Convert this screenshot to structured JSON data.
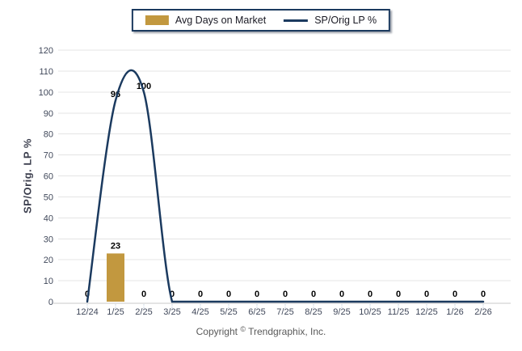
{
  "legend": {
    "items": [
      {
        "label": "Avg Days on Market",
        "swatch": "bar",
        "color": "#C2983F"
      },
      {
        "label": "SP/Orig LP %",
        "swatch": "line",
        "color": "#1B3A5F"
      }
    ]
  },
  "footer": {
    "prefix": "Copyright",
    "symbol": "©",
    "company": "Trendgraphix, Inc."
  },
  "chart_data": {
    "type": "combo",
    "categories": [
      "12/24",
      "1/25",
      "2/25",
      "3/25",
      "4/25",
      "5/25",
      "6/25",
      "7/25",
      "8/25",
      "9/25",
      "10/25",
      "11/25",
      "12/25",
      "1/26",
      "2/26"
    ],
    "series": [
      {
        "name": "Avg Days on Market",
        "type": "bar",
        "color": "#C2983F",
        "values": [
          0,
          23,
          0,
          0,
          0,
          0,
          0,
          0,
          0,
          0,
          0,
          0,
          0,
          0,
          0
        ]
      },
      {
        "name": "SP/Orig LP %",
        "type": "line",
        "smooth": true,
        "color": "#1B3A5F",
        "values": [
          0,
          96,
          100,
          0,
          0,
          0,
          0,
          0,
          0,
          0,
          0,
          0,
          0,
          0,
          0
        ]
      }
    ],
    "title": "",
    "xlabel": "",
    "ylabel": "SP/Orig. LP %",
    "ylim": [
      0,
      120
    ],
    "ytick_step": 10,
    "grid": true,
    "legend_position": "top",
    "data_labels": true,
    "colors": {
      "grid": "#E4E4E4",
      "axis_line": "#C8C8C8",
      "tick_mark": "#9FB6CE",
      "tick_label": "#40485A",
      "data_label": "#000000"
    }
  }
}
